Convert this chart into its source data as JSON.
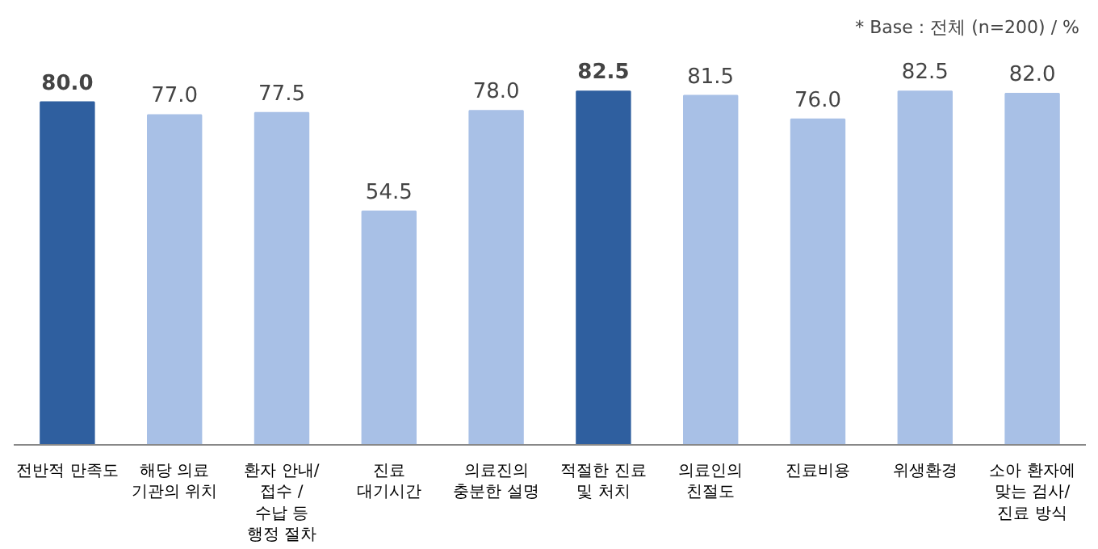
{
  "chart_data": {
    "type": "bar",
    "categories": [
      "전반적 만족도",
      "해당 의료\n기관의 위치",
      "환자 안내/\n접수 /\n수납 등\n행정 절차",
      "진료\n대기시간",
      "의료진의\n충분한 설명",
      "적절한 진료\n및 처치",
      "의료인의\n친절도",
      "진료비용",
      "위생환경",
      "소아 환자에\n맞는 검사/\n진료 방식"
    ],
    "values": [
      80.0,
      77.0,
      77.5,
      54.5,
      78.0,
      82.5,
      81.5,
      76.0,
      82.5,
      82.0
    ],
    "colors": [
      "#2f5f9f",
      "#a8c0e6",
      "#a8c0e6",
      "#a8c0e6",
      "#a8c0e6",
      "#2f5f9f",
      "#a8c0e6",
      "#a8c0e6",
      "#a8c0e6",
      "#a8c0e6"
    ],
    "value_labels": [
      "80.0",
      "77.0",
      "77.5",
      "54.5",
      "78.0",
      "82.5",
      "81.5",
      "76.0",
      "82.5",
      "82.0"
    ],
    "annotations": [
      "* Base : 전체 (n=200) / %"
    ],
    "grid": false,
    "tick_labels": "x"
  }
}
